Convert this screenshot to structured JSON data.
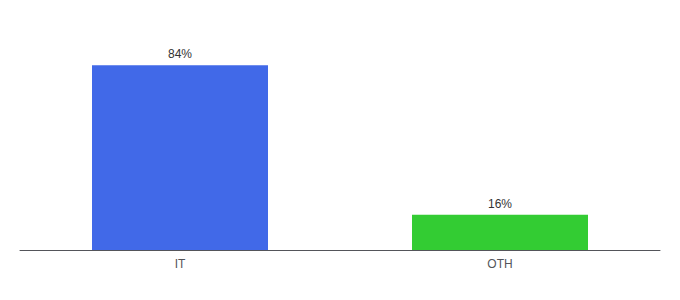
{
  "chart_data": {
    "type": "bar",
    "categories": [
      "IT",
      "OTH"
    ],
    "values": [
      84,
      16
    ],
    "value_labels": [
      "84%",
      "16%"
    ],
    "colors": [
      "#4169e8",
      "#33cc33"
    ],
    "ylim": [
      0,
      100
    ],
    "data_labels": true,
    "tick_labels": "x",
    "grid": false
  }
}
